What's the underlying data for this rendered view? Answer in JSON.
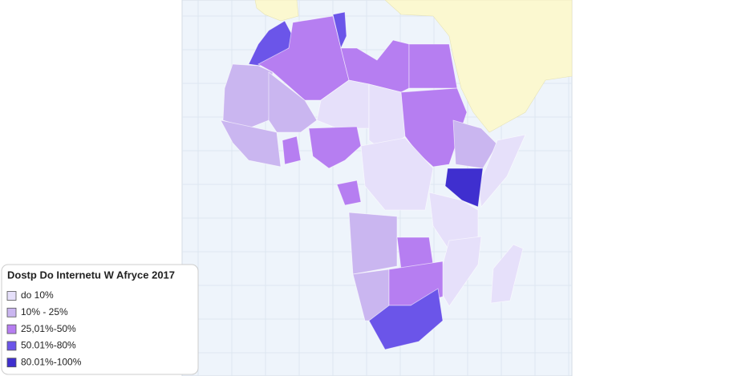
{
  "legend": {
    "title": "Dostp Do Internetu W Afryce 2017",
    "items": [
      {
        "label": "do 10%",
        "color": "#e6e0fa"
      },
      {
        "label": "10% - 25%",
        "color": "#cab6f0"
      },
      {
        "label": "25,01%-50%",
        "color": "#b67ef1"
      },
      {
        "label": "50.01%-80%",
        "color": "#6b55e9"
      },
      {
        "label": "80.01%-100%",
        "color": "#3f2fcf"
      }
    ]
  }
}
